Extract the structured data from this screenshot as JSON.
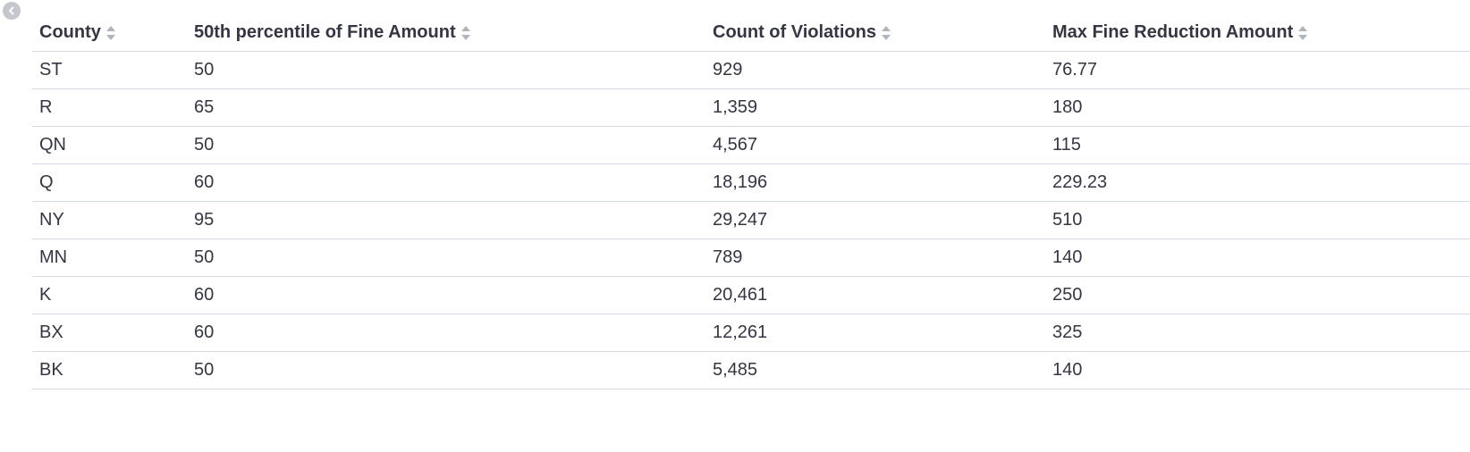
{
  "columns": [
    {
      "label": "County"
    },
    {
      "label": "50th percentile of Fine Amount"
    },
    {
      "label": "Count of Violations"
    },
    {
      "label": "Max Fine Reduction Amount"
    }
  ],
  "rows": [
    [
      "ST",
      "50",
      "929",
      "76.77"
    ],
    [
      "R",
      "65",
      "1,359",
      "180"
    ],
    [
      "QN",
      "50",
      "4,567",
      "115"
    ],
    [
      "Q",
      "60",
      "18,196",
      "229.23"
    ],
    [
      "NY",
      "95",
      "29,247",
      "510"
    ],
    [
      "MN",
      "50",
      "789",
      "140"
    ],
    [
      "K",
      "60",
      "20,461",
      "250"
    ],
    [
      "BX",
      "60",
      "12,261",
      "325"
    ],
    [
      "BK",
      "50",
      "5,485",
      "140"
    ]
  ],
  "icons": {
    "back": "chevron-left-circle-icon",
    "sort": "sort-icon"
  }
}
